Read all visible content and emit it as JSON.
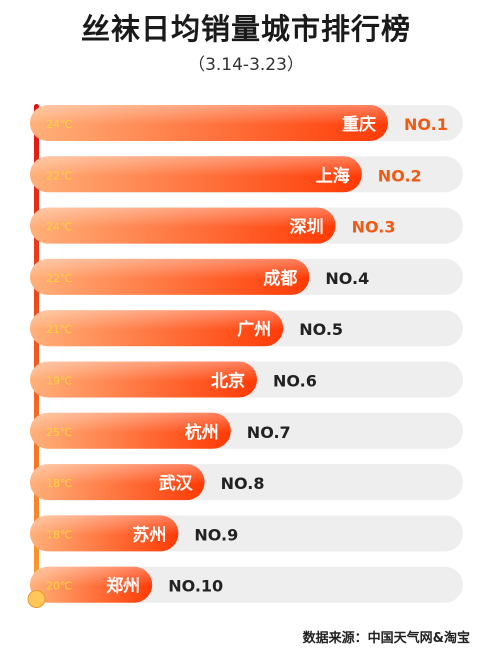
{
  "header": {
    "title": "丝袜日均销量城市排行榜",
    "subtitle": "（3.14-3.23）"
  },
  "footer": {
    "source": "数据来源：中国天气网&淘宝"
  },
  "colors": {
    "bar_start": "#ffb07a",
    "bar_end": "#ff3a05",
    "track": "#eeeeee",
    "rank_highlight": "#f05a14",
    "rank_normal": "#222222",
    "temp_text": "#ffd23c",
    "thermo_top": "#e01010",
    "thermo_bottom": "#ffa030",
    "bulb": "#ffc65a"
  },
  "chart_data": {
    "type": "bar",
    "orientation": "horizontal",
    "title": "丝袜日均销量城市排行榜",
    "subtitle": "（3.14-3.23）",
    "categories": [
      "重庆",
      "上海",
      "深圳",
      "成都",
      "广州",
      "北京",
      "杭州",
      "武汉",
      "苏州",
      "郑州"
    ],
    "ranks": [
      "NO.1",
      "NO.2",
      "NO.3",
      "NO.4",
      "NO.5",
      "NO.6",
      "NO.7",
      "NO.8",
      "NO.9",
      "NO.10"
    ],
    "temperatures": [
      "24℃",
      "22℃",
      "24℃",
      "22℃",
      "21℃",
      "19℃",
      "25℃",
      "18℃",
      "18℃",
      "20℃"
    ],
    "values": [
      10,
      9,
      8,
      7,
      6,
      5,
      4,
      3,
      2,
      1
    ],
    "highlight_top": 3,
    "xlim": [
      0,
      10
    ]
  }
}
